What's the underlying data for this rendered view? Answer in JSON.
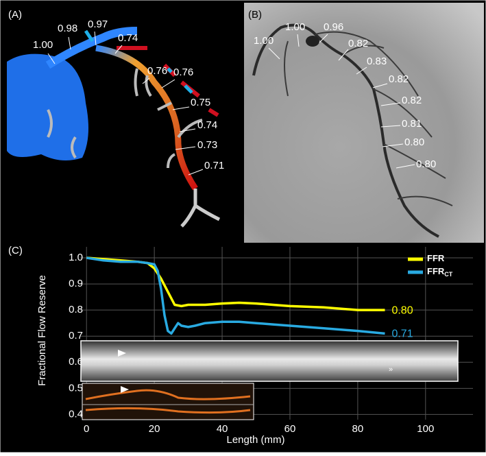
{
  "panel_a": {
    "label": "(A)",
    "annotations": [
      "1.00",
      "0.98",
      "0.97",
      "0.74",
      "0.76",
      "0.76",
      "0.75",
      "0.74",
      "0.73",
      "0.71"
    ]
  },
  "panel_b": {
    "label": "(B)",
    "annotations": [
      "1.00",
      "1.00",
      "0.96",
      "0.82",
      "0.83",
      "0.82",
      "0.82",
      "0.81",
      "0.80",
      "0.80"
    ]
  },
  "chart_data": {
    "type": "line",
    "panel_label": "(C)",
    "ylabel": "Fractional Flow Reserve",
    "xlabel": "Length (mm)",
    "xlim": [
      -5.3,
      115
    ],
    "ylim": [
      0.38,
      1.05
    ],
    "xticks": [
      0,
      20,
      40,
      60,
      80,
      100
    ],
    "yticks": [
      {
        "value": 1,
        "label": "1.0"
      },
      0.9,
      0.8,
      0.7,
      0.6,
      0.5,
      0.4
    ],
    "grid": true,
    "legend": "upper right",
    "series": [
      {
        "name": "FFR",
        "color": "#ffff00",
        "end_label": "0.80",
        "x": [
          0,
          5,
          10,
          15,
          18,
          20,
          22,
          24,
          26,
          28,
          30,
          35,
          40,
          45,
          50,
          55,
          60,
          70,
          80,
          88
        ],
        "values": [
          1.0,
          0.995,
          0.99,
          0.985,
          0.98,
          0.96,
          0.92,
          0.87,
          0.82,
          0.815,
          0.82,
          0.82,
          0.825,
          0.828,
          0.825,
          0.82,
          0.815,
          0.81,
          0.8,
          0.8
        ]
      },
      {
        "name": "FFR",
        "subscript": "CT",
        "color": "#29aae1",
        "end_label": "0.71",
        "x": [
          0,
          5,
          10,
          15,
          18,
          20,
          21,
          22,
          23,
          24,
          25,
          26,
          27,
          28,
          30,
          32,
          35,
          40,
          45,
          50,
          55,
          60,
          70,
          80,
          88
        ],
        "values": [
          1.0,
          0.99,
          0.985,
          0.985,
          0.98,
          0.975,
          0.95,
          0.88,
          0.78,
          0.72,
          0.71,
          0.73,
          0.75,
          0.74,
          0.735,
          0.74,
          0.75,
          0.755,
          0.755,
          0.75,
          0.745,
          0.74,
          0.73,
          0.72,
          0.71
        ]
      }
    ]
  }
}
